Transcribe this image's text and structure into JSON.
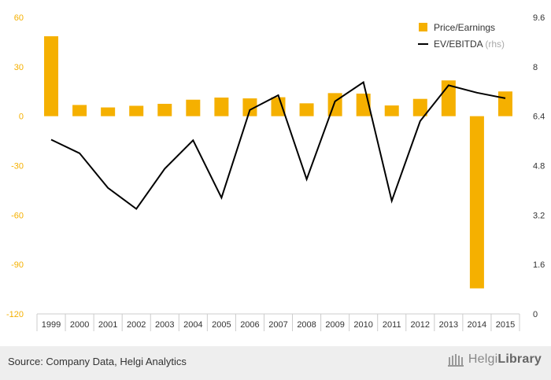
{
  "chart_data": {
    "type": "bar+line",
    "categories": [
      "1999",
      "2000",
      "2001",
      "2002",
      "2003",
      "2004",
      "2005",
      "2006",
      "2007",
      "2008",
      "2009",
      "2010",
      "2011",
      "2012",
      "2013",
      "2014",
      "2015"
    ],
    "series": [
      {
        "name": "Price/Earnings",
        "type": "bar",
        "axis": "left",
        "color": "#f5b000",
        "values": [
          48.5,
          6.8,
          5.3,
          6.3,
          7.5,
          10.0,
          11.3,
          10.8,
          11.5,
          7.8,
          14.0,
          13.7,
          6.5,
          10.5,
          21.7,
          -104.5,
          15.0
        ]
      },
      {
        "name": "EV/EBITDA",
        "name_suffix": "(rhs)",
        "type": "line",
        "axis": "right",
        "color": "#000000",
        "values": [
          5.64,
          5.2,
          4.08,
          3.4,
          4.7,
          5.62,
          3.76,
          6.6,
          7.08,
          4.36,
          6.88,
          7.5,
          3.66,
          6.24,
          7.4,
          7.16,
          6.98
        ]
      }
    ],
    "left_axis": {
      "min": -120,
      "max": 60,
      "ticks": [
        60,
        30,
        0,
        -30,
        -60,
        -90,
        -120
      ],
      "tick_color": "#f5b000"
    },
    "right_axis": {
      "min": 0,
      "max": 9.6,
      "ticks": [
        "9.6",
        "8",
        "6.4",
        "4.8",
        "3.2",
        "1.6",
        "0"
      ],
      "tick_color": "#333333"
    },
    "legend_position": "top-right",
    "grid": false
  },
  "footer": {
    "source": "Source: Company Data, Helgi Analytics",
    "logo_light": "Helgi",
    "logo_bold": "Library"
  }
}
